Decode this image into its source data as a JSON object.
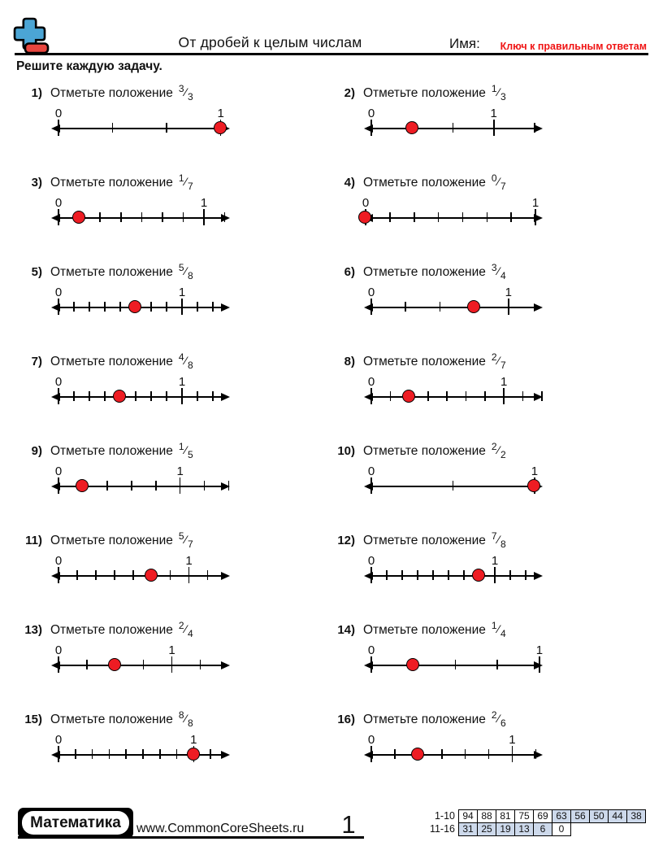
{
  "header": {
    "title": "От дробей к целым числам",
    "name_label": "Имя:",
    "answer_key": "Ключ к правильным ответам",
    "instructions": "Решите каждую задачу."
  },
  "problem_prompt": "Отметьте положение",
  "fraction_slash": "⁄",
  "numline_labels": {
    "zero": "0",
    "one": "1"
  },
  "problems": [
    {
      "num": "1)",
      "numerator": "3",
      "denominator": "3",
      "n": 3,
      "dot": 3,
      "ticks": 3,
      "right_gap": 0.17,
      "left_stub": 9
    },
    {
      "num": "2)",
      "numerator": "1",
      "denominator": "3",
      "n": 3,
      "dot": 1,
      "ticks": 4,
      "right_gap": 0.2,
      "left_stub": 9
    },
    {
      "num": "3)",
      "numerator": "1",
      "denominator": "7",
      "n": 7,
      "dot": 1,
      "ticks": 8,
      "right_gap": 0.25,
      "left_stub": 9
    },
    {
      "num": "4)",
      "numerator": "0",
      "denominator": "7",
      "n": 7,
      "dot": 0,
      "ticks": 7,
      "right_gap": 0.3,
      "left_stub": 2
    },
    {
      "num": "5)",
      "numerator": "5",
      "denominator": "8",
      "n": 8,
      "dot": 5,
      "ticks": 10,
      "right_gap": 1.1,
      "left_stub": 9
    },
    {
      "num": "6)",
      "numerator": "3",
      "denominator": "4",
      "n": 4,
      "dot": 3,
      "ticks": 4,
      "right_gap": 1.0,
      "left_stub": 9
    },
    {
      "num": "7)",
      "numerator": "4",
      "denominator": "8",
      "n": 8,
      "dot": 4,
      "ticks": 10,
      "right_gap": 1.1,
      "left_stub": 9
    },
    {
      "num": "8)",
      "numerator": "2",
      "denominator": "7",
      "n": 7,
      "dot": 2,
      "ticks": 9,
      "right_gap": 0.05,
      "left_stub": 9
    },
    {
      "num": "9)",
      "numerator": "1",
      "denominator": "5",
      "n": 5,
      "dot": 1,
      "ticks": 7,
      "right_gap": 0.05,
      "left_stub": 9
    },
    {
      "num": "10)",
      "numerator": "2",
      "denominator": "2",
      "n": 2,
      "dot": 2,
      "ticks": 2,
      "right_gap": 0.1,
      "left_stub": 9
    },
    {
      "num": "11)",
      "numerator": "5",
      "denominator": "7",
      "n": 7,
      "dot": 5,
      "ticks": 8,
      "right_gap": 1.2,
      "left_stub": 9
    },
    {
      "num": "12)",
      "numerator": "7",
      "denominator": "8",
      "n": 8,
      "dot": 7,
      "ticks": 10,
      "right_gap": 1.1,
      "left_stub": 9
    },
    {
      "num": "13)",
      "numerator": "2",
      "denominator": "4",
      "n": 4,
      "dot": 2,
      "ticks": 5,
      "right_gap": 1.05,
      "left_stub": 9
    },
    {
      "num": "14)",
      "numerator": "1",
      "denominator": "4",
      "n": 4,
      "dot": 1,
      "ticks": 4,
      "right_gap": 0.08,
      "left_stub": 9
    },
    {
      "num": "15)",
      "numerator": "8",
      "denominator": "8",
      "n": 8,
      "dot": 8,
      "ticks": 9,
      "right_gap": 1.15,
      "left_stub": 9
    },
    {
      "num": "16)",
      "numerator": "2",
      "denominator": "6",
      "n": 6,
      "dot": 2,
      "ticks": 7,
      "right_gap": 0.3,
      "left_stub": 9
    }
  ],
  "footer": {
    "subject": "Математика",
    "website": "www.CommonCoreSheets.ru",
    "page": "1",
    "score_table": {
      "rows": [
        {
          "label": "1-10",
          "cells": [
            {
              "v": "94",
              "shaded": false
            },
            {
              "v": "88",
              "shaded": false
            },
            {
              "v": "81",
              "shaded": false
            },
            {
              "v": "75",
              "shaded": false
            },
            {
              "v": "69",
              "shaded": false
            },
            {
              "v": "63",
              "shaded": true
            },
            {
              "v": "56",
              "shaded": true
            },
            {
              "v": "50",
              "shaded": true
            },
            {
              "v": "44",
              "shaded": true
            },
            {
              "v": "38",
              "shaded": true
            }
          ]
        },
        {
          "label": "11-16",
          "cells": [
            {
              "v": "31",
              "shaded": true
            },
            {
              "v": "25",
              "shaded": true
            },
            {
              "v": "19",
              "shaded": true
            },
            {
              "v": "13",
              "shaded": true
            },
            {
              "v": "6",
              "shaded": true
            },
            {
              "v": "0",
              "shaded": false
            }
          ]
        }
      ]
    }
  },
  "colors": {
    "dot_red": "#ee1c23",
    "key_red": "#f01414",
    "logo_blue": "#4ba5d5",
    "logo_red": "#e8463f",
    "table_shade_blue": "#cdd9eb"
  }
}
